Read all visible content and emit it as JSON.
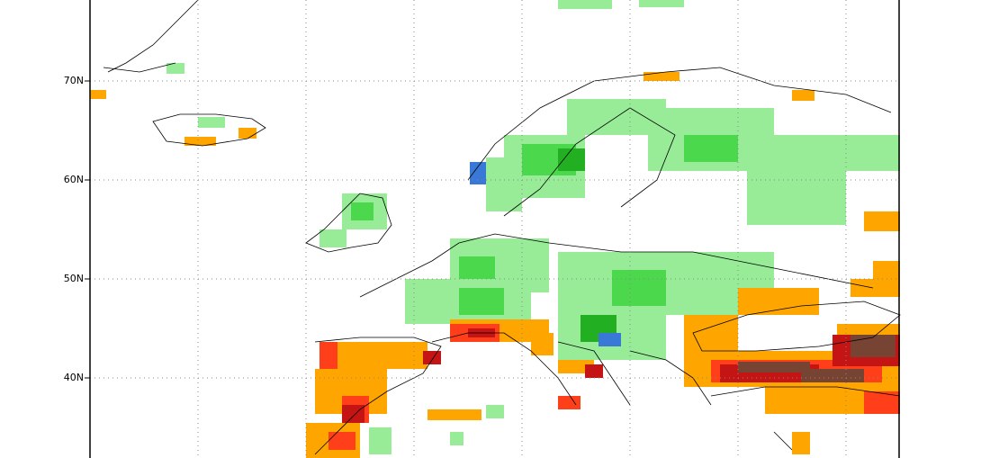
{
  "map": {
    "lat_labels": [
      "70N",
      "60N",
      "50N",
      "40N"
    ]
  }
}
